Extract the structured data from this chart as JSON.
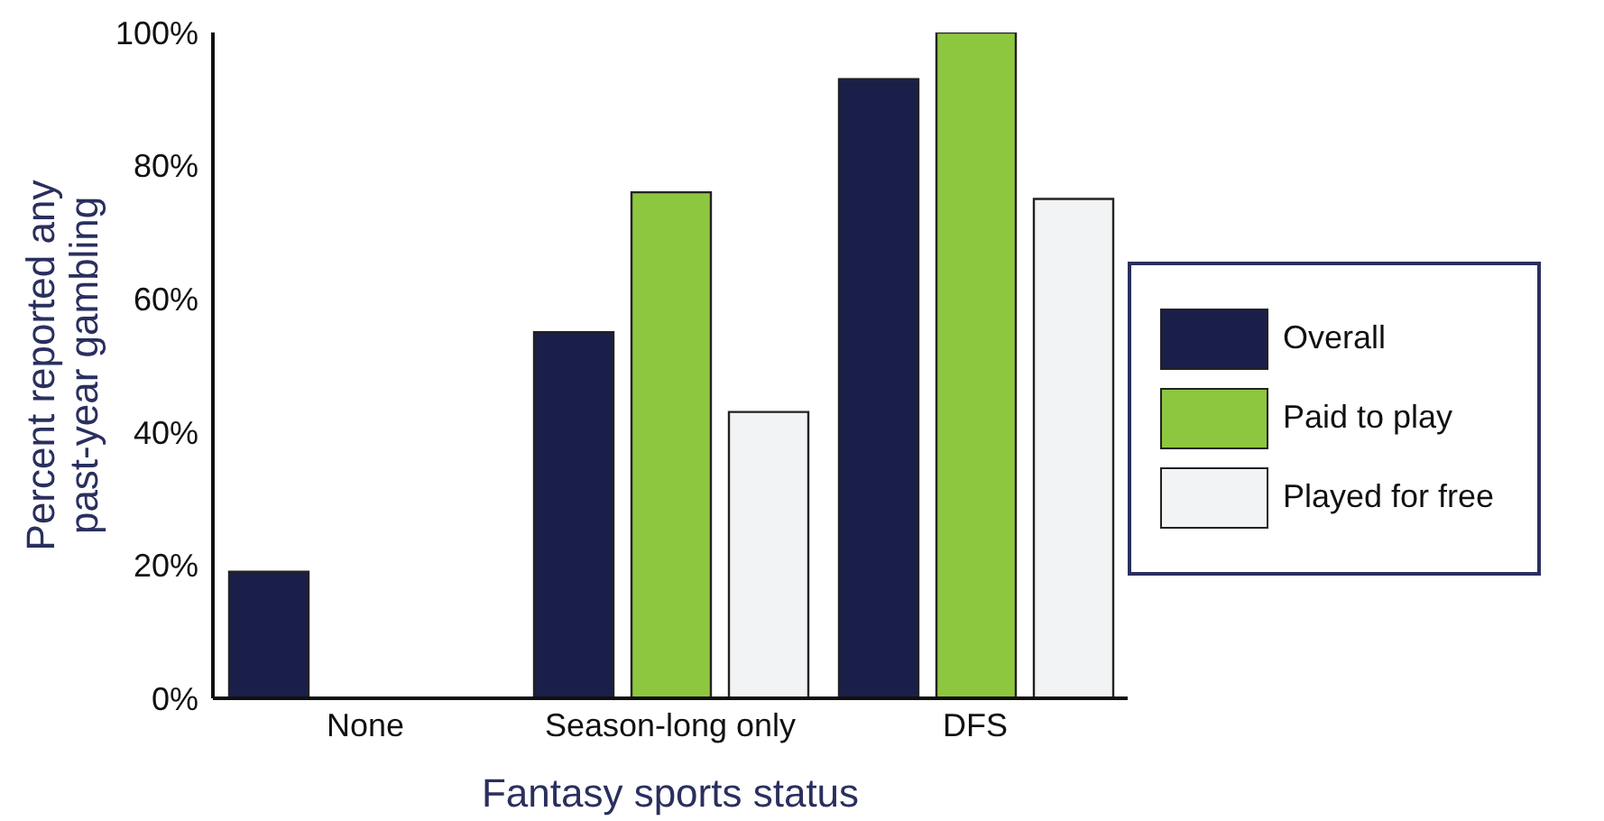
{
  "chart_data": {
    "type": "bar",
    "xlabel": "Fantasy sports status",
    "ylabel": "Percent reported any past-year gambling",
    "categories": [
      "None",
      "Season-long only",
      "DFS"
    ],
    "series": [
      {
        "name": "Overall",
        "color": "#1a1f4a",
        "values": [
          19,
          55,
          93
        ]
      },
      {
        "name": "Paid to play",
        "color": "#8dc63f",
        "values": [
          null,
          76,
          100
        ]
      },
      {
        "name": "Played for free",
        "color": "#f2f3f5",
        "values": [
          null,
          43,
          75
        ]
      }
    ],
    "ylim": [
      0,
      100
    ],
    "yticks": [
      {
        "value": 0,
        "label": "0%"
      },
      {
        "value": 20,
        "label": "20%"
      },
      {
        "value": 40,
        "label": "40%"
      },
      {
        "value": 60,
        "label": "60%"
      },
      {
        "value": 80,
        "label": "80%"
      },
      {
        "value": 100,
        "label": "100%"
      }
    ],
    "grid": false,
    "legend": "right"
  }
}
